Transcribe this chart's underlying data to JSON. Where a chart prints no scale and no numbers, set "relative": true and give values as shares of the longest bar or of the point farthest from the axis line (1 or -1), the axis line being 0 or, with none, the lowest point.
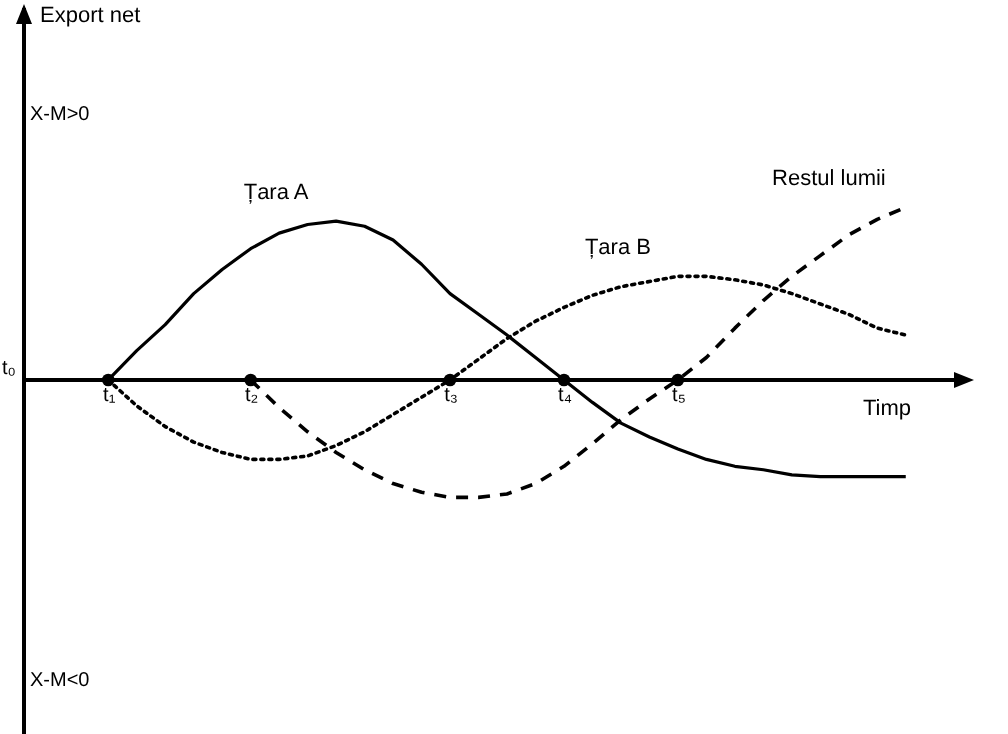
{
  "chart_data": {
    "type": "line",
    "relative": true,
    "xlabel": "Timp",
    "marker": "none",
    "categories": [
      "t₁",
      null,
      null,
      null,
      null,
      "t₂",
      null,
      null,
      null,
      null,
      null,
      null,
      "t₃",
      null,
      null,
      null,
      "t₄",
      null,
      null,
      null,
      "t₅",
      null,
      null,
      null,
      null,
      null,
      null,
      null,
      null
    ],
    "annotations": [
      "Export net",
      "X-M>0",
      "t₀",
      "X-M<0"
    ],
    "series": [
      {
        "name": "Țara A",
        "line_style": "solid",
        "color": "#000000",
        "values": [
          0,
          0.17,
          0.32,
          0.5,
          0.64,
          0.76,
          0.85,
          0.9,
          0.92,
          0.89,
          0.81,
          0.67,
          0.5,
          0.38,
          0.26,
          0.13,
          0,
          -0.13,
          -0.25,
          -0.33,
          -0.4,
          -0.46,
          -0.5,
          -0.52,
          -0.55,
          -0.56,
          -0.56,
          -0.56,
          -0.56
        ]
      },
      {
        "name": "Țara B",
        "line_style": "dotted",
        "color": "#000000",
        "values": [
          0,
          -0.15,
          -0.27,
          -0.36,
          -0.42,
          -0.46,
          -0.46,
          -0.44,
          -0.38,
          -0.3,
          -0.2,
          -0.1,
          0,
          0.12,
          0.24,
          0.34,
          0.42,
          0.49,
          0.54,
          0.57,
          0.6,
          0.6,
          0.58,
          0.55,
          0.5,
          0.44,
          0.38,
          0.3,
          0.26
        ]
      },
      {
        "name": "Restul lumii",
        "line_style": "dashed",
        "color": "#000000",
        "values": [
          null,
          null,
          null,
          null,
          null,
          0,
          -0.16,
          -0.3,
          -0.42,
          -0.52,
          -0.6,
          -0.65,
          -0.68,
          -0.68,
          -0.66,
          -0.6,
          -0.5,
          -0.37,
          -0.23,
          -0.11,
          0,
          0.13,
          0.3,
          0.46,
          0.6,
          0.72,
          0.84,
          0.93,
          1
        ]
      },
      {
        "type": "scatter",
        "marker": "circle",
        "color": "#000000",
        "values": [
          0,
          null,
          null,
          null,
          null,
          0,
          null,
          null,
          null,
          null,
          null,
          null,
          0,
          null,
          null,
          null,
          0,
          null,
          null,
          null,
          0,
          null,
          null,
          null,
          null,
          null,
          null,
          null,
          null
        ]
      }
    ]
  }
}
